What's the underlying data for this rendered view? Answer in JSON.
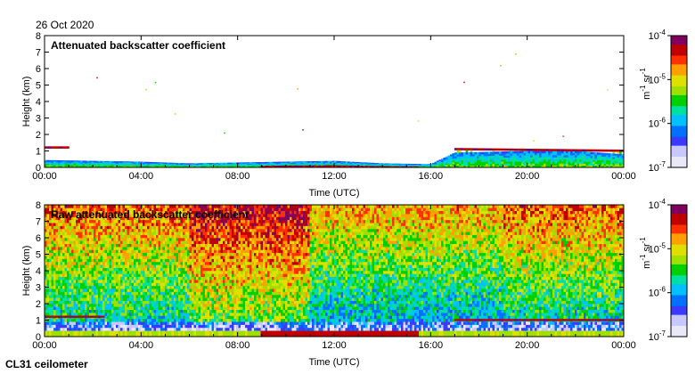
{
  "date": "26 Oct 2020",
  "instrument": "CL31 ceilometer",
  "colors": {
    "axis": "#000000",
    "background": "#ffffff"
  },
  "chart_data": [
    {
      "type": "heatmap",
      "title": "Attenuated backscatter coefficient",
      "xlabel": "Time (UTC)",
      "ylabel": "Height (km)",
      "xlim": [
        "00:00",
        "00:00"
      ],
      "ylim": [
        0,
        8
      ],
      "x_ticks": [
        "00:00",
        "04:00",
        "08:00",
        "12:00",
        "16:00",
        "20:00",
        "00:00"
      ],
      "y_ticks": [
        "0",
        "1",
        "2",
        "3",
        "4",
        "5",
        "6",
        "7",
        "8"
      ],
      "colorbar": {
        "label_base": "m",
        "label_exp1": "-1",
        "label_mid": " sr",
        "label_exp2": "-1",
        "scale": "log",
        "ticks": [
          {
            "base": "10",
            "exp": "-7"
          },
          {
            "base": "10",
            "exp": "-6"
          },
          {
            "base": "10",
            "exp": "-5"
          },
          {
            "base": "10",
            "exp": "-4"
          }
        ]
      },
      "features": {
        "boundary_layer_top_km": [
          [
            0,
            0.45
          ],
          [
            2,
            0.4
          ],
          [
            4,
            0.35
          ],
          [
            6,
            0.25
          ],
          [
            8,
            0.3
          ],
          [
            10,
            0.35
          ],
          [
            12,
            0.4
          ],
          [
            14,
            0.25
          ],
          [
            16,
            0.2
          ],
          [
            17,
            0.9
          ],
          [
            20,
            1.0
          ],
          [
            22,
            1.0
          ],
          [
            24,
            0.8
          ]
        ],
        "cloud_layer_km": [
          [
            0,
            1.2
          ],
          [
            1,
            1.2
          ],
          [
            17,
            1.1
          ],
          [
            24,
            1.0
          ]
        ],
        "strong_surface_hours": [
          [
            9,
            15.5
          ]
        ]
      }
    },
    {
      "type": "heatmap",
      "title": "Raw attenuated backscatter coefficient",
      "xlabel": "Time (UTC)",
      "ylabel": "Height (km)",
      "xlim": [
        "00:00",
        "00:00"
      ],
      "ylim": [
        0,
        8
      ],
      "x_ticks": [
        "00:00",
        "04:00",
        "08:00",
        "12:00",
        "16:00",
        "20:00",
        "00:00"
      ],
      "y_ticks": [
        "0",
        "1",
        "2",
        "3",
        "4",
        "5",
        "6",
        "7",
        "8"
      ],
      "colorbar": {
        "label_base": "m",
        "label_exp1": "-1",
        "label_mid": " sr",
        "label_exp2": "-1",
        "scale": "log",
        "ticks": [
          {
            "base": "10",
            "exp": "-7"
          },
          {
            "base": "10",
            "exp": "-6"
          },
          {
            "base": "10",
            "exp": "-5"
          },
          {
            "base": "10",
            "exp": "-4"
          }
        ]
      },
      "features": {
        "noise_peak_hours": [
          [
            6,
            11
          ]
        ],
        "cloud_layer_km": [
          [
            0,
            1.2
          ],
          [
            2.5,
            1.2
          ],
          [
            17,
            1.0
          ],
          [
            24,
            1.0
          ]
        ],
        "strong_surface_hours": [
          [
            9,
            15.5
          ]
        ]
      }
    }
  ]
}
